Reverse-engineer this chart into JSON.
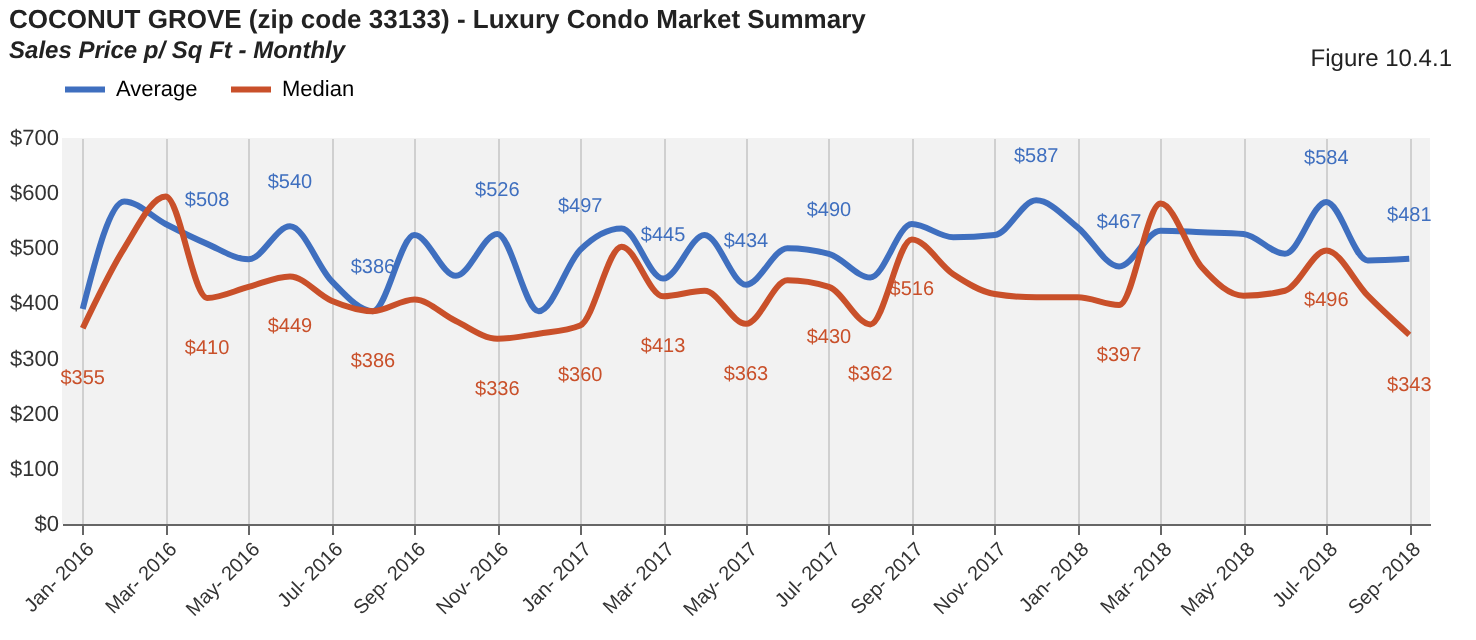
{
  "chart_data": {
    "type": "line",
    "title": "COCONUT GROVE (zip code 33133) - Luxury Condo Market Summary",
    "subtitle": "Sales Price  p/ Sq Ft - Monthly",
    "annotations": [
      "Figure 10.4.1"
    ],
    "categories": [
      "Jan- 2016",
      null,
      "Mar- 2016",
      null,
      "May- 2016",
      null,
      "Jul- 2016",
      null,
      "Sep- 2016",
      null,
      "Nov- 2016",
      null,
      "Jan- 2017",
      null,
      "Mar- 2017",
      null,
      "May- 2017",
      null,
      "Jul- 2017",
      null,
      "Sep- 2017",
      null,
      "Nov- 2017",
      null,
      "Jan- 2018",
      null,
      "Mar- 2018",
      null,
      "May- 2018",
      null,
      "Jul- 2018",
      null,
      "Sep- 2018"
    ],
    "series": [
      {
        "name": "Average",
        "color": "#3f6fbf",
        "values": [
          390,
          585,
          544,
          508,
          480,
          540,
          441,
          386,
          524,
          450,
          526,
          386,
          497,
          536,
          445,
          524,
          434,
          500,
          490,
          447,
          544,
          520,
          524,
          587,
          538,
          467,
          532,
          529,
          526,
          490,
          584,
          478,
          481
        ],
        "value_labels": [
          null,
          null,
          null,
          "$508",
          null,
          "$540",
          null,
          "$386",
          null,
          null,
          "$526",
          null,
          "$497",
          null,
          "$445",
          null,
          "$434",
          null,
          "$490",
          null,
          null,
          null,
          null,
          "$587",
          null,
          "$467",
          null,
          null,
          null,
          null,
          "$584",
          null,
          "$481"
        ]
      },
      {
        "name": "Median",
        "color": "#c9502a",
        "values": [
          355,
          500,
          594,
          410,
          430,
          449,
          405,
          386,
          407,
          368,
          336,
          345,
          360,
          503,
          413,
          423,
          363,
          442,
          430,
          362,
          516,
          453,
          417,
          411,
          411,
          397,
          581,
          465,
          414,
          423,
          496,
          414,
          343
        ],
        "value_labels": [
          "$355",
          null,
          null,
          "$410",
          null,
          "$449",
          null,
          "$386",
          null,
          null,
          "$336",
          null,
          "$360",
          null,
          "$413",
          null,
          "$363",
          null,
          "$430",
          "$362",
          "$516",
          null,
          null,
          null,
          null,
          "$397",
          null,
          null,
          null,
          null,
          "$496",
          null,
          "$343"
        ]
      }
    ],
    "ylim": [
      0,
      700
    ],
    "yticks": [
      {
        "value": 0,
        "label": "$0"
      },
      {
        "value": 100,
        "label": "$100"
      },
      {
        "value": 200,
        "label": "$200"
      },
      {
        "value": 300,
        "label": "$300"
      },
      {
        "value": 400,
        "label": "$400"
      },
      {
        "value": 500,
        "label": "$500"
      },
      {
        "value": 600,
        "label": "$600"
      },
      {
        "value": 700,
        "label": "$700"
      }
    ],
    "grid": "x",
    "legend": "top"
  }
}
